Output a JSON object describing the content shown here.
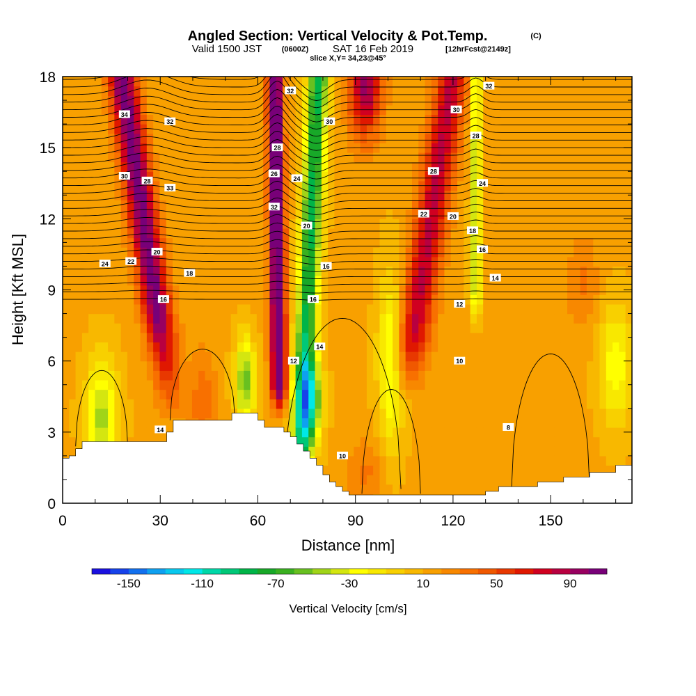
{
  "title": {
    "main": "Angled Section: Vertical Velocity & Pot.Temp.",
    "main_units": "(C)",
    "sub_prefix": "Valid 1500 JST",
    "sub_zulu": "(0600Z)",
    "sub_date": "SAT 16 Feb 2019",
    "sub_fcst": "[12hrFcst@2149z]",
    "slice": "slice X,Y= 34,23@45°"
  },
  "chart_data": {
    "type": "heatmap",
    "xlabel": "Distance [nm]",
    "ylabel": "Height [Kft MSL]",
    "xlim": [
      0,
      175
    ],
    "ylim": [
      0,
      18
    ],
    "x_ticks": [
      "0",
      "30",
      "60",
      "90",
      "120",
      "150"
    ],
    "x_tick_values": [
      0,
      30,
      60,
      90,
      120,
      150
    ],
    "y_ticks": [
      "0",
      "3",
      "6",
      "9",
      "12",
      "15",
      "18"
    ],
    "y_tick_values": [
      0,
      3,
      6,
      9,
      12,
      15,
      18
    ],
    "colorbar": {
      "title": "Vertical Velocity [cm/s]",
      "labels": [
        "-150",
        "-110",
        "-70",
        "-30",
        "10",
        "50",
        "90"
      ],
      "label_values": [
        -150,
        -110,
        -70,
        -30,
        10,
        50,
        90
      ],
      "min": -170,
      "max": 110,
      "step": 10,
      "colors": [
        "#1a10e0",
        "#1642ea",
        "#1270ee",
        "#0ea0f0",
        "#08c8ee",
        "#00e8e8",
        "#00d8a8",
        "#00c878",
        "#00b448",
        "#18a828",
        "#3ab020",
        "#68c020",
        "#a0d418",
        "#d4e610",
        "#ffff00",
        "#f8e800",
        "#f8d000",
        "#f8b800",
        "#f8a000",
        "#f88800",
        "#f87000",
        "#f05800",
        "#e83800",
        "#e01800",
        "#d00020",
        "#b80040",
        "#980060",
        "#780078"
      ]
    },
    "terrain_kft": [
      [
        0,
        1.9
      ],
      [
        2,
        2.0
      ],
      [
        4,
        2.3
      ],
      [
        6,
        2.6
      ],
      [
        20,
        2.6
      ],
      [
        22,
        2.6
      ],
      [
        30,
        2.6
      ],
      [
        32,
        3.0
      ],
      [
        34,
        3.5
      ],
      [
        50,
        3.5
      ],
      [
        52,
        3.8
      ],
      [
        58,
        3.8
      ],
      [
        60,
        3.5
      ],
      [
        62,
        3.2
      ],
      [
        66,
        3.2
      ],
      [
        68,
        3.0
      ],
      [
        70,
        2.8
      ],
      [
        72,
        2.5
      ],
      [
        74,
        2.2
      ],
      [
        76,
        1.9
      ],
      [
        78,
        1.6
      ],
      [
        80,
        1.2
      ],
      [
        82,
        0.9
      ],
      [
        84,
        0.7
      ],
      [
        86,
        0.5
      ],
      [
        88,
        0.35
      ],
      [
        120,
        0.35
      ],
      [
        124,
        0.35
      ],
      [
        128,
        0.35
      ],
      [
        130,
        0.5
      ],
      [
        134,
        0.7
      ],
      [
        142,
        0.7
      ],
      [
        146,
        0.9
      ],
      [
        154,
        1.1
      ],
      [
        162,
        1.3
      ],
      [
        170,
        1.6
      ],
      [
        175,
        1.6
      ]
    ],
    "theta_contours": [
      {
        "value": 8,
        "label_at": [
          137,
          3.2
        ]
      },
      {
        "value": 10,
        "label_at": [
          86,
          2.0
        ]
      },
      {
        "value": 10,
        "label_at": [
          122,
          6.0
        ]
      },
      {
        "value": 12,
        "label_at": [
          71,
          6.0
        ]
      },
      {
        "value": 12,
        "label_at": [
          122,
          8.4
        ]
      },
      {
        "value": 14,
        "label_at": [
          30,
          3.1
        ]
      },
      {
        "value": 14,
        "label_at": [
          79,
          6.6
        ]
      },
      {
        "value": 14,
        "label_at": [
          133,
          9.5
        ]
      },
      {
        "value": 16,
        "label_at": [
          31,
          8.6
        ]
      },
      {
        "value": 16,
        "label_at": [
          77,
          8.6
        ]
      },
      {
        "value": 16,
        "label_at": [
          129,
          10.7
        ]
      },
      {
        "value": 16,
        "label_at": [
          81,
          10.0
        ]
      },
      {
        "value": 18,
        "label_at": [
          39,
          9.7
        ]
      },
      {
        "value": 18,
        "label_at": [
          126,
          11.5
        ]
      },
      {
        "value": 20,
        "label_at": [
          29,
          10.6
        ]
      },
      {
        "value": 20,
        "label_at": [
          75,
          11.7
        ]
      },
      {
        "value": 20,
        "label_at": [
          120,
          12.1
        ]
      },
      {
        "value": 22,
        "label_at": [
          21,
          10.2
        ]
      },
      {
        "value": 22,
        "label_at": [
          111,
          12.2
        ]
      },
      {
        "value": 24,
        "label_at": [
          13,
          10.1
        ]
      },
      {
        "value": 24,
        "label_at": [
          72,
          13.7
        ]
      },
      {
        "value": 24,
        "label_at": [
          129,
          13.5
        ]
      },
      {
        "value": 26,
        "label_at": [
          65,
          13.9
        ]
      },
      {
        "value": 28,
        "label_at": [
          26,
          13.6
        ]
      },
      {
        "value": 28,
        "label_at": [
          66,
          15.0
        ]
      },
      {
        "value": 28,
        "label_at": [
          114,
          14.0
        ]
      },
      {
        "value": 28,
        "label_at": [
          127,
          15.5
        ]
      },
      {
        "value": 30,
        "label_at": [
          19,
          13.8
        ]
      },
      {
        "value": 30,
        "label_at": [
          82,
          16.1
        ]
      },
      {
        "value": 30,
        "label_at": [
          121,
          16.6
        ]
      },
      {
        "value": 32,
        "label_at": [
          33,
          16.1
        ]
      },
      {
        "value": 32,
        "label_at": [
          70,
          17.4
        ]
      },
      {
        "value": 32,
        "label_at": [
          131,
          17.6
        ]
      },
      {
        "value": 32,
        "label_at": [
          65,
          12.5
        ]
      },
      {
        "value": 33,
        "label_at": [
          33,
          13.3
        ]
      },
      {
        "value": 34,
        "label_at": [
          19,
          16.4
        ]
      }
    ]
  }
}
